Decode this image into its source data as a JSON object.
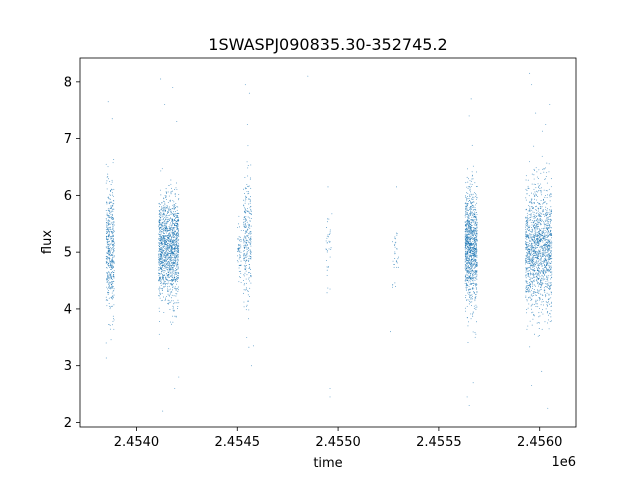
{
  "chart_data": {
    "type": "scatter",
    "title": "1SWASPJ090835.30-352745.2",
    "xlabel": "time",
    "ylabel": "flux",
    "x_offset_label": "1e6",
    "x_offset": 1000000,
    "xlim": [
      2.45372,
      2.45618
    ],
    "ylim": [
      1.92,
      8.42
    ],
    "grid": false,
    "legend": "none",
    "marker_color": "#1f77b4",
    "x_ticks": [
      {
        "value": 2.454,
        "label": "2.4540"
      },
      {
        "value": 2.4545,
        "label": "2.4545"
      },
      {
        "value": 2.455,
        "label": "2.4550"
      },
      {
        "value": 2.4555,
        "label": "2.4555"
      },
      {
        "value": 2.456,
        "label": "2.4560"
      }
    ],
    "y_ticks": [
      {
        "value": 2,
        "label": "2"
      },
      {
        "value": 3,
        "label": "3"
      },
      {
        "value": 4,
        "label": "4"
      },
      {
        "value": 5,
        "label": "5"
      },
      {
        "value": 6,
        "label": "6"
      },
      {
        "value": 7,
        "label": "7"
      },
      {
        "value": 8,
        "label": "8"
      }
    ],
    "clusters": [
      {
        "x_start": 2.45385,
        "x_end": 2.45389,
        "y_center": 5.05,
        "y_spread": 0.55,
        "count": 500
      },
      {
        "x_start": 2.45411,
        "x_end": 2.45421,
        "y_center": 5.05,
        "y_spread": 0.45,
        "count": 1400
      },
      {
        "x_start": 2.4545,
        "x_end": 2.45452,
        "y_center": 5.0,
        "y_spread": 0.3,
        "count": 60
      },
      {
        "x_start": 2.45453,
        "x_end": 2.45457,
        "y_center": 5.15,
        "y_spread": 0.55,
        "count": 280
      },
      {
        "x_start": 2.45494,
        "x_end": 2.45497,
        "y_center": 5.2,
        "y_spread": 0.35,
        "count": 35
      },
      {
        "x_start": 2.45527,
        "x_end": 2.4553,
        "y_center": 4.95,
        "y_spread": 0.3,
        "count": 35
      },
      {
        "x_start": 2.45563,
        "x_end": 2.45569,
        "y_center": 5.1,
        "y_spread": 0.5,
        "count": 1100
      },
      {
        "x_start": 2.45593,
        "x_end": 2.45606,
        "y_center": 5.05,
        "y_spread": 0.55,
        "count": 1500
      }
    ],
    "outliers": [
      {
        "x": 2.45386,
        "y": 7.65
      },
      {
        "x": 2.45388,
        "y": 7.35
      },
      {
        "x": 2.45385,
        "y": 3.4
      },
      {
        "x": 2.45412,
        "y": 8.05
      },
      {
        "x": 2.45414,
        "y": 7.6
      },
      {
        "x": 2.45418,
        "y": 7.9
      },
      {
        "x": 2.4542,
        "y": 7.3
      },
      {
        "x": 2.45421,
        "y": 2.8
      },
      {
        "x": 2.45419,
        "y": 2.6
      },
      {
        "x": 2.45413,
        "y": 2.2
      },
      {
        "x": 2.45416,
        "y": 3.3
      },
      {
        "x": 2.45454,
        "y": 7.95
      },
      {
        "x": 2.45456,
        "y": 7.8
      },
      {
        "x": 2.45455,
        "y": 7.25
      },
      {
        "x": 2.45458,
        "y": 3.35
      },
      {
        "x": 2.45457,
        "y": 3.0
      },
      {
        "x": 2.45485,
        "y": 8.1
      },
      {
        "x": 2.45495,
        "y": 6.15
      },
      {
        "x": 2.45496,
        "y": 2.6
      },
      {
        "x": 2.45496,
        "y": 2.45
      },
      {
        "x": 2.45496,
        "y": 4.35
      },
      {
        "x": 2.45529,
        "y": 6.15
      },
      {
        "x": 2.45526,
        "y": 3.6
      },
      {
        "x": 2.45566,
        "y": 7.7
      },
      {
        "x": 2.45565,
        "y": 7.4
      },
      {
        "x": 2.45564,
        "y": 2.45
      },
      {
        "x": 2.45565,
        "y": 2.3
      },
      {
        "x": 2.45567,
        "y": 2.7
      },
      {
        "x": 2.45568,
        "y": 3.5
      },
      {
        "x": 2.45595,
        "y": 8.15
      },
      {
        "x": 2.45596,
        "y": 7.95
      },
      {
        "x": 2.45598,
        "y": 7.45
      },
      {
        "x": 2.45603,
        "y": 7.25
      },
      {
        "x": 2.45605,
        "y": 7.6
      },
      {
        "x": 2.45604,
        "y": 2.25
      },
      {
        "x": 2.45601,
        "y": 2.9
      },
      {
        "x": 2.45596,
        "y": 2.65
      }
    ]
  }
}
